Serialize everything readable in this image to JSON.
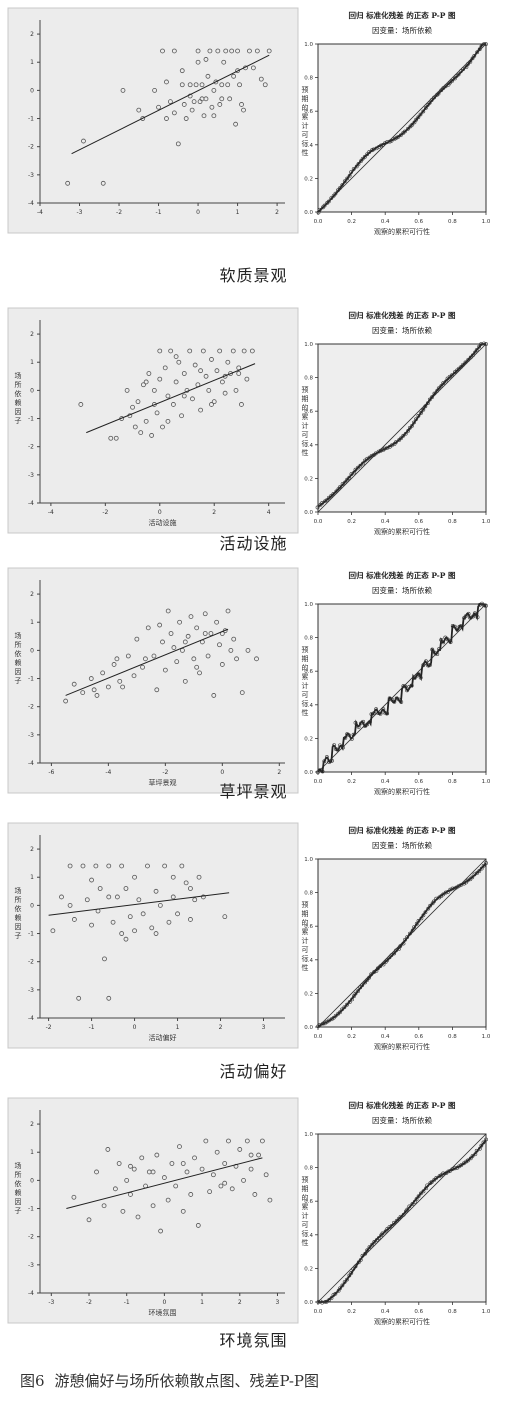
{
  "figure_caption": {
    "number": "图6",
    "text": "游憩偏好与场所依赖散点图、残差P-P图"
  },
  "pp_common": {
    "title": "回归 标准化残差 的正态 P-P 图",
    "dependent": "因变量：场所依赖",
    "xlabel": "观察的累积可行性",
    "ylabel_chars": [
      "预",
      "期",
      "的",
      "累",
      "计",
      "可",
      "行",
      "性"
    ],
    "ticks": [
      "0.0",
      "0.2",
      "0.4",
      "0.6",
      "0.8",
      "1.0"
    ]
  },
  "scatter_ylabel_chars": [
    "场",
    "所",
    "依",
    "赖",
    "因",
    "子"
  ],
  "chart_data": [
    {
      "type": "scatter",
      "section": "软质景观",
      "xlabel": "",
      "ylabel": "",
      "xticks": [
        "-4",
        "-3",
        "-2",
        "-1",
        "0",
        "1",
        "2"
      ],
      "yticks": [
        "2",
        "1",
        "0",
        "-1",
        "-2",
        "-3",
        "-4"
      ],
      "xlim": [
        -4,
        2.2
      ],
      "ylim": [
        -4,
        2.5
      ],
      "fit_line": {
        "x": [
          -3.2,
          1.8
        ],
        "y": [
          -2.25,
          1.25
        ]
      },
      "points": [
        [
          -3.3,
          -3.3
        ],
        [
          -2.9,
          -1.8
        ],
        [
          -2.4,
          -3.3
        ],
        [
          -1.9,
          0
        ],
        [
          -1.5,
          -0.7
        ],
        [
          -1.4,
          -1
        ],
        [
          -1.1,
          0
        ],
        [
          -1,
          -0.6
        ],
        [
          -0.9,
          1.4
        ],
        [
          -0.8,
          -1
        ],
        [
          -0.7,
          -0.4
        ],
        [
          -0.6,
          -0.8
        ],
        [
          -0.5,
          -1.9
        ],
        [
          -0.4,
          0.2
        ],
        [
          -0.35,
          -0.5
        ],
        [
          -0.3,
          -1
        ],
        [
          -0.2,
          0.2
        ],
        [
          -0.15,
          -0.7
        ],
        [
          -0.1,
          -0.4
        ],
        [
          -0.05,
          0.2
        ],
        [
          0,
          1.4
        ],
        [
          0,
          1
        ],
        [
          0.05,
          -0.4
        ],
        [
          0.1,
          0.2
        ],
        [
          0.15,
          -0.9
        ],
        [
          0.2,
          -0.3
        ],
        [
          0.25,
          0.5
        ],
        [
          0.3,
          1.4
        ],
        [
          0.35,
          -0.6
        ],
        [
          0.4,
          0
        ],
        [
          0.45,
          0.3
        ],
        [
          0.5,
          1.4
        ],
        [
          0.55,
          -0.5
        ],
        [
          0.6,
          0.2
        ],
        [
          0.65,
          1
        ],
        [
          0.7,
          1.4
        ],
        [
          0.75,
          0.2
        ],
        [
          0.8,
          -0.3
        ],
        [
          0.85,
          1.4
        ],
        [
          0.9,
          0.5
        ],
        [
          0.95,
          -1.2
        ],
        [
          1,
          1.4
        ],
        [
          1.05,
          0.2
        ],
        [
          1.1,
          -0.5
        ],
        [
          1.15,
          -0.7
        ],
        [
          1.2,
          0.8
        ],
        [
          1.3,
          1.4
        ],
        [
          1.4,
          0.8
        ],
        [
          1.5,
          1.4
        ],
        [
          1.6,
          0.4
        ],
        [
          1.7,
          0.2
        ],
        [
          1.8,
          1.4
        ],
        [
          -0.6,
          1.4
        ],
        [
          -0.4,
          0.7
        ],
        [
          0.2,
          1.1
        ],
        [
          0.4,
          -0.9
        ],
        [
          -0.2,
          -0.2
        ],
        [
          0.6,
          -0.3
        ],
        [
          0.1,
          -0.3
        ],
        [
          -0.8,
          0.3
        ],
        [
          1.0,
          0.7
        ]
      ],
      "pp_steps": false
    },
    {
      "type": "scatter",
      "section": "活动设施",
      "xlabel": "活动设施",
      "ylabel": "场所依赖因子",
      "xticks": [
        "-4",
        "-2",
        "0",
        "2",
        "4"
      ],
      "yticks": [
        "2",
        "1",
        "0",
        "-1",
        "-2",
        "-3",
        "-4"
      ],
      "xlim": [
        -4.4,
        4.6
      ],
      "ylim": [
        -4,
        2.5
      ],
      "fit_line": {
        "x": [
          -2.7,
          3.5
        ],
        "y": [
          -1.5,
          0.95
        ]
      },
      "points": [
        [
          -2.9,
          -0.5
        ],
        [
          -1.8,
          -1.7
        ],
        [
          -1.6,
          -1.7
        ],
        [
          -1.4,
          -1
        ],
        [
          -1.2,
          0
        ],
        [
          -1,
          -0.6
        ],
        [
          -0.9,
          -1.3
        ],
        [
          -0.8,
          -0.4
        ],
        [
          -0.7,
          -1.5
        ],
        [
          -0.6,
          0.2
        ],
        [
          -0.5,
          -1.1
        ],
        [
          -0.4,
          0.6
        ],
        [
          -0.3,
          -1.6
        ],
        [
          -0.2,
          0
        ],
        [
          -0.1,
          -0.8
        ],
        [
          0,
          1.4
        ],
        [
          0,
          0.4
        ],
        [
          0.1,
          -1.3
        ],
        [
          0.2,
          0.8
        ],
        [
          0.3,
          -0.2
        ],
        [
          0.4,
          1.4
        ],
        [
          0.5,
          -0.5
        ],
        [
          0.6,
          0.3
        ],
        [
          0.7,
          1
        ],
        [
          0.8,
          -0.9
        ],
        [
          0.9,
          0.6
        ],
        [
          1,
          0
        ],
        [
          1.1,
          1.4
        ],
        [
          1.2,
          -0.3
        ],
        [
          1.3,
          0.9
        ],
        [
          1.4,
          0.2
        ],
        [
          1.5,
          -0.7
        ],
        [
          1.6,
          1.4
        ],
        [
          1.7,
          0.5
        ],
        [
          1.8,
          0
        ],
        [
          1.9,
          1.1
        ],
        [
          2,
          -0.4
        ],
        [
          2.1,
          0.7
        ],
        [
          2.2,
          1.4
        ],
        [
          2.3,
          0.3
        ],
        [
          2.4,
          -0.1
        ],
        [
          2.5,
          1
        ],
        [
          2.6,
          0.6
        ],
        [
          2.7,
          1.4
        ],
        [
          2.8,
          0
        ],
        [
          2.9,
          0.8
        ],
        [
          3,
          -0.5
        ],
        [
          3.1,
          1.4
        ],
        [
          3.2,
          0.4
        ],
        [
          3.4,
          1.4
        ],
        [
          -0.5,
          0.3
        ],
        [
          0.3,
          -1.1
        ],
        [
          1.5,
          0.7
        ],
        [
          0.9,
          -0.2
        ],
        [
          2.4,
          0.5
        ],
        [
          -1.1,
          -0.9
        ],
        [
          0.6,
          1.2
        ],
        [
          1.9,
          -0.5
        ],
        [
          2.9,
          0.6
        ],
        [
          -0.2,
          -0.5
        ]
      ],
      "pp_steps": false
    },
    {
      "type": "scatter",
      "section": "草坪景观",
      "xlabel": "草坪景观",
      "ylabel": "场所依赖因子",
      "xticks": [
        "-6",
        "-4",
        "-2",
        "0",
        "2"
      ],
      "yticks": [
        "2",
        "1",
        "0",
        "-1",
        "-2",
        "-3",
        "-4"
      ],
      "xlim": [
        -6.4,
        2.2
      ],
      "ylim": [
        -4,
        2.5
      ],
      "fit_line": {
        "x": [
          -5.5,
          0.2
        ],
        "y": [
          -1.6,
          0.75
        ]
      },
      "points": [
        [
          -5.5,
          -1.8
        ],
        [
          -5.2,
          -1.2
        ],
        [
          -4.9,
          -1.5
        ],
        [
          -4.6,
          -1
        ],
        [
          -4.4,
          -1.6
        ],
        [
          -4.2,
          -0.8
        ],
        [
          -4,
          -1.3
        ],
        [
          -3.8,
          -0.5
        ],
        [
          -3.6,
          -1.1
        ],
        [
          -3.5,
          -1.3
        ],
        [
          -3.3,
          -0.2
        ],
        [
          -3.1,
          -0.9
        ],
        [
          -3,
          0.4
        ],
        [
          -2.8,
          -0.6
        ],
        [
          -2.6,
          0.8
        ],
        [
          -2.4,
          -0.2
        ],
        [
          -2.3,
          -1.4
        ],
        [
          -2.1,
          0.3
        ],
        [
          -2,
          -0.7
        ],
        [
          -1.9,
          1.4
        ],
        [
          -1.8,
          0.6
        ],
        [
          -1.6,
          -0.4
        ],
        [
          -1.5,
          1
        ],
        [
          -1.4,
          0
        ],
        [
          -1.3,
          -1.1
        ],
        [
          -1.2,
          0.5
        ],
        [
          -1.1,
          1.2
        ],
        [
          -1,
          -0.3
        ],
        [
          -0.9,
          0.8
        ],
        [
          -0.8,
          -0.8
        ],
        [
          -0.7,
          0.3
        ],
        [
          -0.6,
          1.3
        ],
        [
          -0.5,
          -0.2
        ],
        [
          -0.4,
          0.6
        ],
        [
          -0.3,
          -1.6
        ],
        [
          -0.2,
          1
        ],
        [
          -0.1,
          0.2
        ],
        [
          0,
          -0.5
        ],
        [
          0.1,
          0.7
        ],
        [
          0.2,
          1.4
        ],
        [
          0.3,
          0
        ],
        [
          0.4,
          0.4
        ],
        [
          0.5,
          -0.3
        ],
        [
          0.7,
          -1.5
        ],
        [
          0.9,
          0
        ],
        [
          1.2,
          -0.3
        ],
        [
          -2.7,
          -0.3
        ],
        [
          -1.7,
          0.1
        ],
        [
          -0.9,
          -0.6
        ],
        [
          -3.7,
          -0.3
        ],
        [
          -4.5,
          -1.4
        ],
        [
          -2.2,
          0.9
        ],
        [
          -0.6,
          0.6
        ],
        [
          -1.3,
          0.3
        ],
        [
          0.0,
          0.6
        ]
      ],
      "pp_steps": true
    },
    {
      "type": "scatter",
      "section": "活动偏好",
      "xlabel": "活动偏好",
      "ylabel": "场所依赖因子",
      "xticks": [
        "-2",
        "-1",
        "0",
        "1",
        "2",
        "3"
      ],
      "yticks": [
        "2",
        "1",
        "0",
        "-1",
        "-2",
        "-3",
        "-4"
      ],
      "xlim": [
        -2.2,
        3.5
      ],
      "ylim": [
        -4,
        2.5
      ],
      "fit_line": {
        "x": [
          -2,
          2.2
        ],
        "y": [
          -0.35,
          0.45
        ]
      },
      "points": [
        [
          -1.9,
          -0.9
        ],
        [
          -1.7,
          0.3
        ],
        [
          -1.5,
          1.4
        ],
        [
          -1.5,
          0
        ],
        [
          -1.4,
          -0.5
        ],
        [
          -1.3,
          -3.3
        ],
        [
          -1.2,
          1.4
        ],
        [
          -1.1,
          0.2
        ],
        [
          -1,
          -0.7
        ],
        [
          -0.9,
          1.4
        ],
        [
          -0.85,
          -0.2
        ],
        [
          -0.8,
          0.6
        ],
        [
          -0.7,
          -1.9
        ],
        [
          -0.6,
          1.4
        ],
        [
          -0.6,
          -3.3
        ],
        [
          -0.5,
          -0.6
        ],
        [
          -0.4,
          0.3
        ],
        [
          -0.3,
          1.4
        ],
        [
          -0.3,
          -1
        ],
        [
          -0.2,
          0.6
        ],
        [
          -0.1,
          -0.4
        ],
        [
          0,
          1
        ],
        [
          0,
          -0.9
        ],
        [
          0.1,
          0.2
        ],
        [
          0.2,
          -0.3
        ],
        [
          0.3,
          1.4
        ],
        [
          0.4,
          -0.8
        ],
        [
          0.5,
          0.5
        ],
        [
          0.6,
          0
        ],
        [
          0.7,
          1.4
        ],
        [
          0.8,
          -0.6
        ],
        [
          0.9,
          0.3
        ],
        [
          1,
          -0.3
        ],
        [
          1.1,
          1.4
        ],
        [
          1.2,
          0.8
        ],
        [
          1.3,
          -0.5
        ],
        [
          1.4,
          0.2
        ],
        [
          1.5,
          1
        ],
        [
          1.6,
          0.3
        ],
        [
          2.1,
          -0.4
        ],
        [
          -1,
          0.9
        ],
        [
          0.5,
          -1
        ],
        [
          -0.2,
          -1.2
        ],
        [
          0.9,
          1
        ],
        [
          1.3,
          0.6
        ],
        [
          -0.6,
          0.3
        ]
      ],
      "pp_steps": false
    },
    {
      "type": "scatter",
      "section": "环境氛围",
      "xlabel": "环境氛围",
      "ylabel": "场所依赖因子",
      "xticks": [
        "-3",
        "-2",
        "-1",
        "0",
        "1",
        "2",
        "3"
      ],
      "yticks": [
        "2",
        "1",
        "0",
        "-1",
        "-2",
        "-3",
        "-4"
      ],
      "xlim": [
        -3.3,
        3.2
      ],
      "ylim": [
        -4,
        2.5
      ],
      "fit_line": {
        "x": [
          -2.6,
          2.6
        ],
        "y": [
          -1,
          0.8
        ]
      },
      "points": [
        [
          -2.4,
          -0.6
        ],
        [
          -2,
          -1.4
        ],
        [
          -1.8,
          0.3
        ],
        [
          -1.6,
          -0.9
        ],
        [
          -1.5,
          1.1
        ],
        [
          -1.3,
          -0.3
        ],
        [
          -1.2,
          0.6
        ],
        [
          -1.1,
          -1.1
        ],
        [
          -1,
          0
        ],
        [
          -0.9,
          -0.5
        ],
        [
          -0.8,
          0.4
        ],
        [
          -0.7,
          -1.3
        ],
        [
          -0.6,
          0.8
        ],
        [
          -0.5,
          -0.2
        ],
        [
          -0.4,
          0.3
        ],
        [
          -0.3,
          -0.9
        ],
        [
          -0.2,
          0.9
        ],
        [
          -0.1,
          -1.8
        ],
        [
          0,
          0.1
        ],
        [
          0.1,
          -0.7
        ],
        [
          0.2,
          0.6
        ],
        [
          0.3,
          -0.2
        ],
        [
          0.4,
          1.2
        ],
        [
          0.5,
          -1.1
        ],
        [
          0.6,
          0.3
        ],
        [
          0.7,
          -0.5
        ],
        [
          0.8,
          0.8
        ],
        [
          0.9,
          -1.6
        ],
        [
          1,
          0.4
        ],
        [
          1.1,
          1.4
        ],
        [
          1.2,
          -0.4
        ],
        [
          1.3,
          0.2
        ],
        [
          1.4,
          1
        ],
        [
          1.5,
          -0.2
        ],
        [
          1.6,
          0.6
        ],
        [
          1.7,
          1.4
        ],
        [
          1.8,
          -0.3
        ],
        [
          1.9,
          0.5
        ],
        [
          2,
          1.1
        ],
        [
          2.1,
          0
        ],
        [
          2.2,
          1.4
        ],
        [
          2.3,
          0.4
        ],
        [
          2.4,
          -0.5
        ],
        [
          2.5,
          0.9
        ],
        [
          2.6,
          1.4
        ],
        [
          2.7,
          0.2
        ],
        [
          2.8,
          -0.7
        ],
        [
          -0.9,
          0.5
        ],
        [
          0.5,
          0.6
        ],
        [
          1.6,
          -0.1
        ],
        [
          -0.3,
          0.3
        ],
        [
          2.3,
          0.9
        ]
      ],
      "pp_steps": false
    }
  ]
}
